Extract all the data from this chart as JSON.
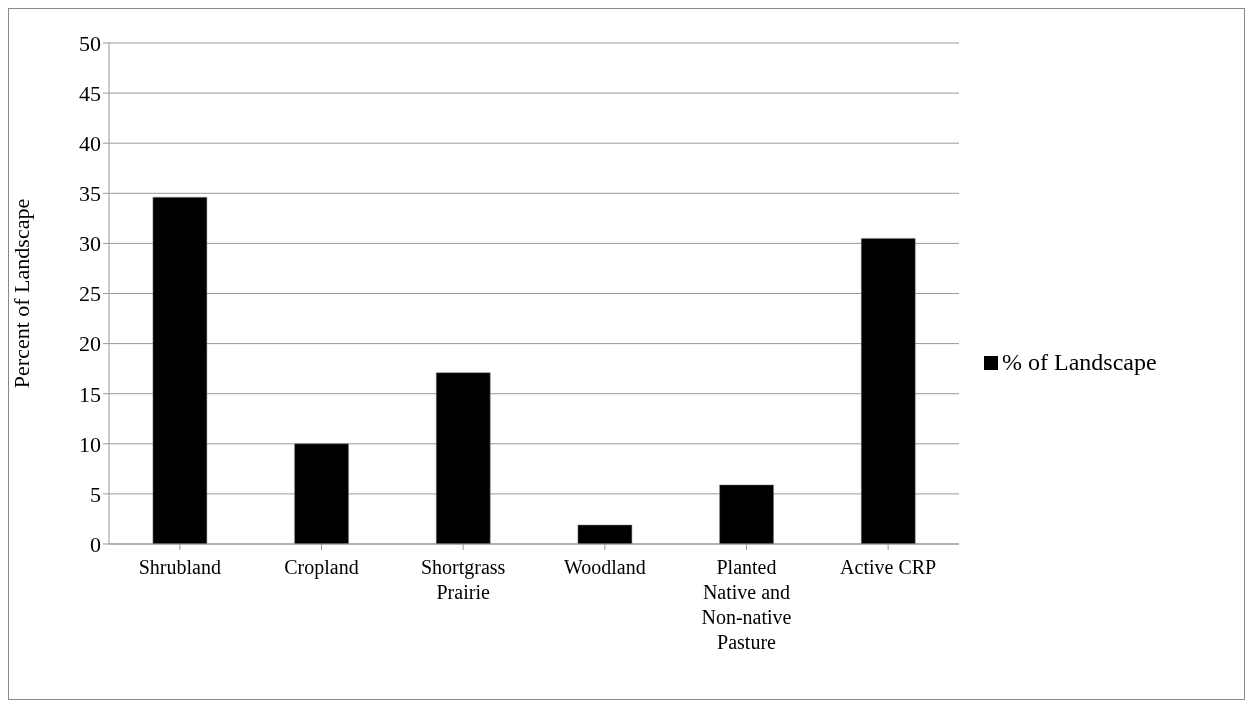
{
  "chart_data": {
    "type": "bar",
    "ylabel": "Percent of Landscape",
    "categories": [
      "Shrubland",
      "Cropland",
      "Shortgrass Prairie",
      "Woodland",
      "Planted Native and Non-native Pasture",
      "Active CRP"
    ],
    "series": [
      {
        "name": "% of Landscape",
        "color": "#000000",
        "values": [
          34.6,
          10,
          17.1,
          1.9,
          5.9,
          30.5
        ]
      }
    ],
    "ylim": [
      0,
      50
    ],
    "yticks": [
      0,
      5,
      10,
      15,
      20,
      25,
      30,
      35,
      40,
      45,
      50
    ],
    "grid": "y",
    "legend": "right"
  }
}
